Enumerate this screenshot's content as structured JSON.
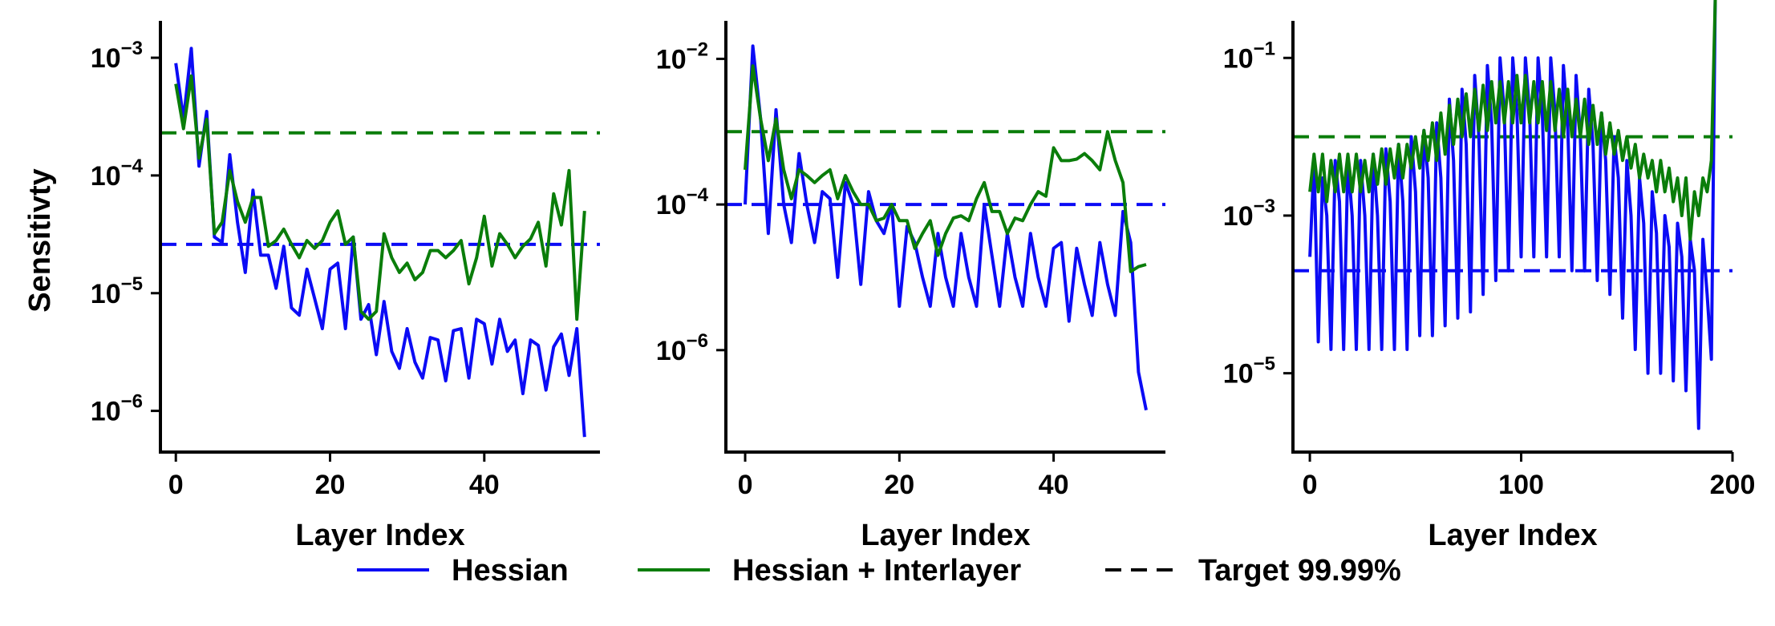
{
  "colors": {
    "hessian": "#0b0bf5",
    "interlayer": "#0a7d0a",
    "target": "#000000"
  },
  "legend": {
    "hessian_label": "Hessian",
    "interlayer_label": "Hessian + Interlayer",
    "target_label": "Target 99.99%"
  },
  "chart_data": [
    {
      "type": "line",
      "xlabel": "Layer Index",
      "ylabel": "Sensitivty",
      "xlim": [
        -2,
        55
      ],
      "ylim_log10": [
        -6.35,
        -2.7
      ],
      "xticks": [
        0,
        20,
        40
      ],
      "yticks_exp": [
        -6,
        -5,
        -4,
        -3
      ],
      "target_hessian": 2.6e-05,
      "target_interlayer": 0.00023,
      "series": [
        {
          "name": "Hessian",
          "x": [
            0,
            1,
            2,
            3,
            4,
            5,
            6,
            7,
            8,
            9,
            10,
            11,
            12,
            13,
            14,
            15,
            16,
            17,
            18,
            19,
            20,
            21,
            22,
            23,
            24,
            25,
            26,
            27,
            28,
            29,
            30,
            31,
            32,
            33,
            34,
            35,
            36,
            37,
            38,
            39,
            40,
            41,
            42,
            43,
            44,
            45,
            46,
            47,
            48,
            49,
            50,
            51,
            52,
            53
          ],
          "y": [
            0.0009,
            0.0003,
            0.0012,
            0.00012,
            0.00035,
            3e-05,
            2.7e-05,
            0.00015,
            4e-05,
            1.5e-05,
            7.5e-05,
            2.1e-05,
            2.1e-05,
            1.1e-05,
            2.5e-05,
            7.5e-06,
            6.5e-06,
            1.6e-05,
            9e-06,
            5e-06,
            1.6e-05,
            1.8e-05,
            5e-06,
            3e-05,
            6e-06,
            8e-06,
            3e-06,
            8.5e-06,
            3.2e-06,
            2.3e-06,
            5e-06,
            2.6e-06,
            1.9e-06,
            4.2e-06,
            4e-06,
            1.8e-06,
            4.8e-06,
            5e-06,
            1.9e-06,
            6e-06,
            5.5e-06,
            2.5e-06,
            6e-06,
            3.2e-06,
            4e-06,
            1.4e-06,
            4e-06,
            3.6e-06,
            1.5e-06,
            3.5e-06,
            4.5e-06,
            2e-06,
            5e-06,
            6e-07
          ]
        },
        {
          "name": "Hessian + Interlayer",
          "x": [
            0,
            1,
            2,
            3,
            4,
            5,
            6,
            7,
            8,
            9,
            10,
            11,
            12,
            13,
            14,
            15,
            16,
            17,
            18,
            19,
            20,
            21,
            22,
            23,
            24,
            25,
            26,
            27,
            28,
            29,
            30,
            31,
            32,
            33,
            34,
            35,
            36,
            37,
            38,
            39,
            40,
            41,
            42,
            43,
            44,
            45,
            46,
            47,
            48,
            49,
            50,
            51,
            52,
            53
          ],
          "y": [
            0.0006,
            0.00025,
            0.0007,
            0.00014,
            0.0003,
            3.2e-05,
            4e-05,
            0.00011,
            6e-05,
            4e-05,
            6.5e-05,
            6.5e-05,
            2.5e-05,
            2.8e-05,
            3.5e-05,
            2.6e-05,
            2e-05,
            2.8e-05,
            2.4e-05,
            2.8e-05,
            4e-05,
            5e-05,
            2.6e-05,
            3e-05,
            7e-06,
            6e-06,
            7e-06,
            3.2e-05,
            2e-05,
            1.5e-05,
            1.8e-05,
            1.3e-05,
            1.5e-05,
            2.3e-05,
            2.3e-05,
            2e-05,
            2.3e-05,
            2.8e-05,
            1.2e-05,
            2e-05,
            4.5e-05,
            1.7e-05,
            3.2e-05,
            2.6e-05,
            2e-05,
            2.5e-05,
            2.9e-05,
            4e-05,
            1.7e-05,
            7e-05,
            3.8e-05,
            0.00011,
            6e-06,
            5e-05
          ]
        }
      ]
    },
    {
      "type": "line",
      "xlabel": "Layer Index",
      "ylabel": "",
      "xlim": [
        -2.5,
        54.5
      ],
      "ylim_log10": [
        -7.4,
        -1.5
      ],
      "xticks": [
        0,
        20,
        40
      ],
      "yticks_exp": [
        -6,
        -4,
        -2
      ],
      "target_hessian": 0.0001,
      "target_interlayer": 0.001,
      "series": [
        {
          "name": "Hessian",
          "x": [
            0,
            1,
            2,
            3,
            4,
            5,
            6,
            7,
            8,
            9,
            10,
            11,
            12,
            13,
            14,
            15,
            16,
            17,
            18,
            19,
            20,
            21,
            22,
            23,
            24,
            25,
            26,
            27,
            28,
            29,
            30,
            31,
            32,
            33,
            34,
            35,
            36,
            37,
            38,
            39,
            40,
            41,
            42,
            43,
            44,
            45,
            46,
            47,
            48,
            49,
            50,
            51,
            52
          ],
          "y": [
            0.0001,
            0.015,
            0.0015,
            4e-05,
            0.002,
            0.0001,
            3e-05,
            0.0005,
            0.0001,
            3e-05,
            0.00015,
            0.00012,
            1e-05,
            0.0002,
            0.0001,
            8e-06,
            0.00015,
            6e-05,
            4e-05,
            0.0001,
            4e-06,
            5e-05,
            3e-05,
            1e-05,
            4e-06,
            4e-05,
            1e-05,
            4e-06,
            4e-05,
            1e-05,
            4e-06,
            0.0001,
            2e-05,
            4e-06,
            4e-05,
            1e-05,
            4e-06,
            4e-05,
            1e-05,
            4e-06,
            2.5e-05,
            3e-05,
            2.5e-06,
            2.5e-05,
            8e-06,
            3e-06,
            3e-05,
            8e-06,
            3e-06,
            8e-05,
            3e-05,
            5e-07,
            1.5e-07
          ]
        },
        {
          "name": "Hessian + Interlayer",
          "x": [
            0,
            1,
            2,
            3,
            4,
            5,
            6,
            7,
            8,
            9,
            10,
            11,
            12,
            13,
            14,
            15,
            16,
            17,
            18,
            19,
            20,
            21,
            22,
            23,
            24,
            25,
            26,
            27,
            28,
            29,
            30,
            31,
            32,
            33,
            34,
            35,
            36,
            37,
            38,
            39,
            40,
            41,
            42,
            43,
            44,
            45,
            46,
            47,
            48,
            49,
            50,
            51,
            52
          ],
          "y": [
            0.0003,
            0.008,
            0.0015,
            0.0004,
            0.0015,
            0.0003,
            0.00012,
            0.0003,
            0.00025,
            0.0002,
            0.00025,
            0.0003,
            0.00012,
            0.00025,
            0.00015,
            0.0001,
            0.0001,
            6e-05,
            6.5e-05,
            0.0001,
            6e-05,
            6e-05,
            2.5e-05,
            4e-05,
            6e-05,
            2e-05,
            4e-05,
            6.5e-05,
            7e-05,
            6e-05,
            0.00012,
            0.0002,
            8e-05,
            8e-05,
            4e-05,
            6.5e-05,
            6e-05,
            0.0001,
            0.00015,
            0.00013,
            0.0006,
            0.0004,
            0.0004,
            0.00042,
            0.0005,
            0.0004,
            0.0003,
            0.001,
            0.0004,
            0.0002,
            1.2e-05,
            1.4e-05,
            1.5e-05
          ]
        }
      ]
    },
    {
      "type": "line",
      "xlabel": "Layer Index",
      "ylabel": "",
      "xlim": [
        -8,
        200
      ],
      "ylim_log10": [
        -6.0,
        -0.55
      ],
      "xticks": [
        0,
        100,
        200
      ],
      "yticks_exp": [
        -5,
        -3,
        -1
      ],
      "target_hessian": 0.0002,
      "target_interlayer": 0.01,
      "series": [
        {
          "name": "Hessian",
          "x": [
            0,
            2,
            4,
            6,
            8,
            10,
            12,
            14,
            16,
            18,
            20,
            22,
            24,
            26,
            28,
            30,
            32,
            34,
            36,
            38,
            40,
            42,
            44,
            46,
            48,
            50,
            52,
            54,
            56,
            58,
            60,
            62,
            64,
            66,
            68,
            70,
            72,
            74,
            76,
            78,
            80,
            82,
            84,
            86,
            88,
            90,
            92,
            94,
            96,
            98,
            100,
            102,
            104,
            106,
            108,
            110,
            112,
            114,
            116,
            118,
            120,
            122,
            124,
            126,
            128,
            130,
            132,
            134,
            136,
            138,
            140,
            142,
            144,
            146,
            148,
            150,
            152,
            154,
            156,
            158,
            160,
            162,
            164,
            166,
            168,
            170,
            172,
            174,
            176,
            178,
            180,
            182,
            184,
            186,
            188,
            190,
            192
          ],
          "y": [
            0.0003,
            0.005,
            2.5e-05,
            0.003,
            0.001,
            2e-05,
            0.005,
            0.0015,
            2e-05,
            0.005,
            0.001,
            2e-05,
            0.005,
            0.001,
            2e-05,
            0.006,
            0.001,
            2e-05,
            0.007,
            0.0015,
            2e-05,
            0.008,
            0.0015,
            2e-05,
            0.01,
            0.002,
            3e-05,
            0.012,
            0.003,
            3e-05,
            0.015,
            0.003,
            4e-05,
            0.03,
            0.005,
            5e-05,
            0.04,
            0.008,
            6e-05,
            0.06,
            0.01,
            0.0001,
            0.08,
            0.015,
            0.00015,
            0.1,
            0.02,
            0.0002,
            0.1,
            0.02,
            0.0003,
            0.1,
            0.02,
            0.0003,
            0.1,
            0.02,
            0.0003,
            0.1,
            0.02,
            0.0003,
            0.08,
            0.015,
            0.0002,
            0.06,
            0.01,
            0.0002,
            0.04,
            0.008,
            0.00015,
            0.02,
            0.005,
            0.0001,
            0.01,
            0.003,
            5e-05,
            0.005,
            0.001,
            2e-05,
            0.003,
            0.0008,
            1e-05,
            0.002,
            0.0006,
            1e-05,
            0.001,
            0.0004,
            8e-06,
            0.0008,
            0.0003,
            6e-06,
            0.0005,
            0.0002,
            2e-06,
            0.0005,
            0.0001,
            1.5e-05,
            1.5
          ]
        },
        {
          "name": "Hessian + Interlayer",
          "x": [
            0,
            2,
            4,
            6,
            8,
            10,
            12,
            14,
            16,
            18,
            20,
            22,
            24,
            26,
            28,
            30,
            32,
            34,
            36,
            38,
            40,
            42,
            44,
            46,
            48,
            50,
            52,
            54,
            56,
            58,
            60,
            62,
            64,
            66,
            68,
            70,
            72,
            74,
            76,
            78,
            80,
            82,
            84,
            86,
            88,
            90,
            92,
            94,
            96,
            98,
            100,
            102,
            104,
            106,
            108,
            110,
            112,
            114,
            116,
            118,
            120,
            122,
            124,
            126,
            128,
            130,
            132,
            134,
            136,
            138,
            140,
            142,
            144,
            146,
            148,
            150,
            152,
            154,
            156,
            158,
            160,
            162,
            164,
            166,
            168,
            170,
            172,
            174,
            176,
            178,
            180,
            182,
            184,
            186,
            188,
            190,
            192
          ],
          "y": [
            0.002,
            0.006,
            0.002,
            0.006,
            0.0015,
            0.005,
            0.002,
            0.006,
            0.002,
            0.006,
            0.002,
            0.006,
            0.002,
            0.005,
            0.002,
            0.006,
            0.0025,
            0.007,
            0.0025,
            0.007,
            0.003,
            0.008,
            0.003,
            0.008,
            0.004,
            0.01,
            0.004,
            0.012,
            0.005,
            0.015,
            0.005,
            0.02,
            0.006,
            0.025,
            0.008,
            0.03,
            0.01,
            0.035,
            0.01,
            0.04,
            0.012,
            0.045,
            0.012,
            0.05,
            0.015,
            0.05,
            0.015,
            0.05,
            0.015,
            0.06,
            0.015,
            0.06,
            0.015,
            0.05,
            0.015,
            0.05,
            0.012,
            0.05,
            0.012,
            0.04,
            0.01,
            0.04,
            0.01,
            0.03,
            0.01,
            0.03,
            0.008,
            0.025,
            0.008,
            0.02,
            0.006,
            0.015,
            0.006,
            0.012,
            0.005,
            0.01,
            0.004,
            0.008,
            0.003,
            0.006,
            0.003,
            0.005,
            0.002,
            0.005,
            0.002,
            0.004,
            0.0015,
            0.003,
            0.001,
            0.003,
            0.0005,
            0.002,
            0.001,
            0.003,
            0.002,
            0.005,
            0.8
          ]
        }
      ]
    }
  ]
}
